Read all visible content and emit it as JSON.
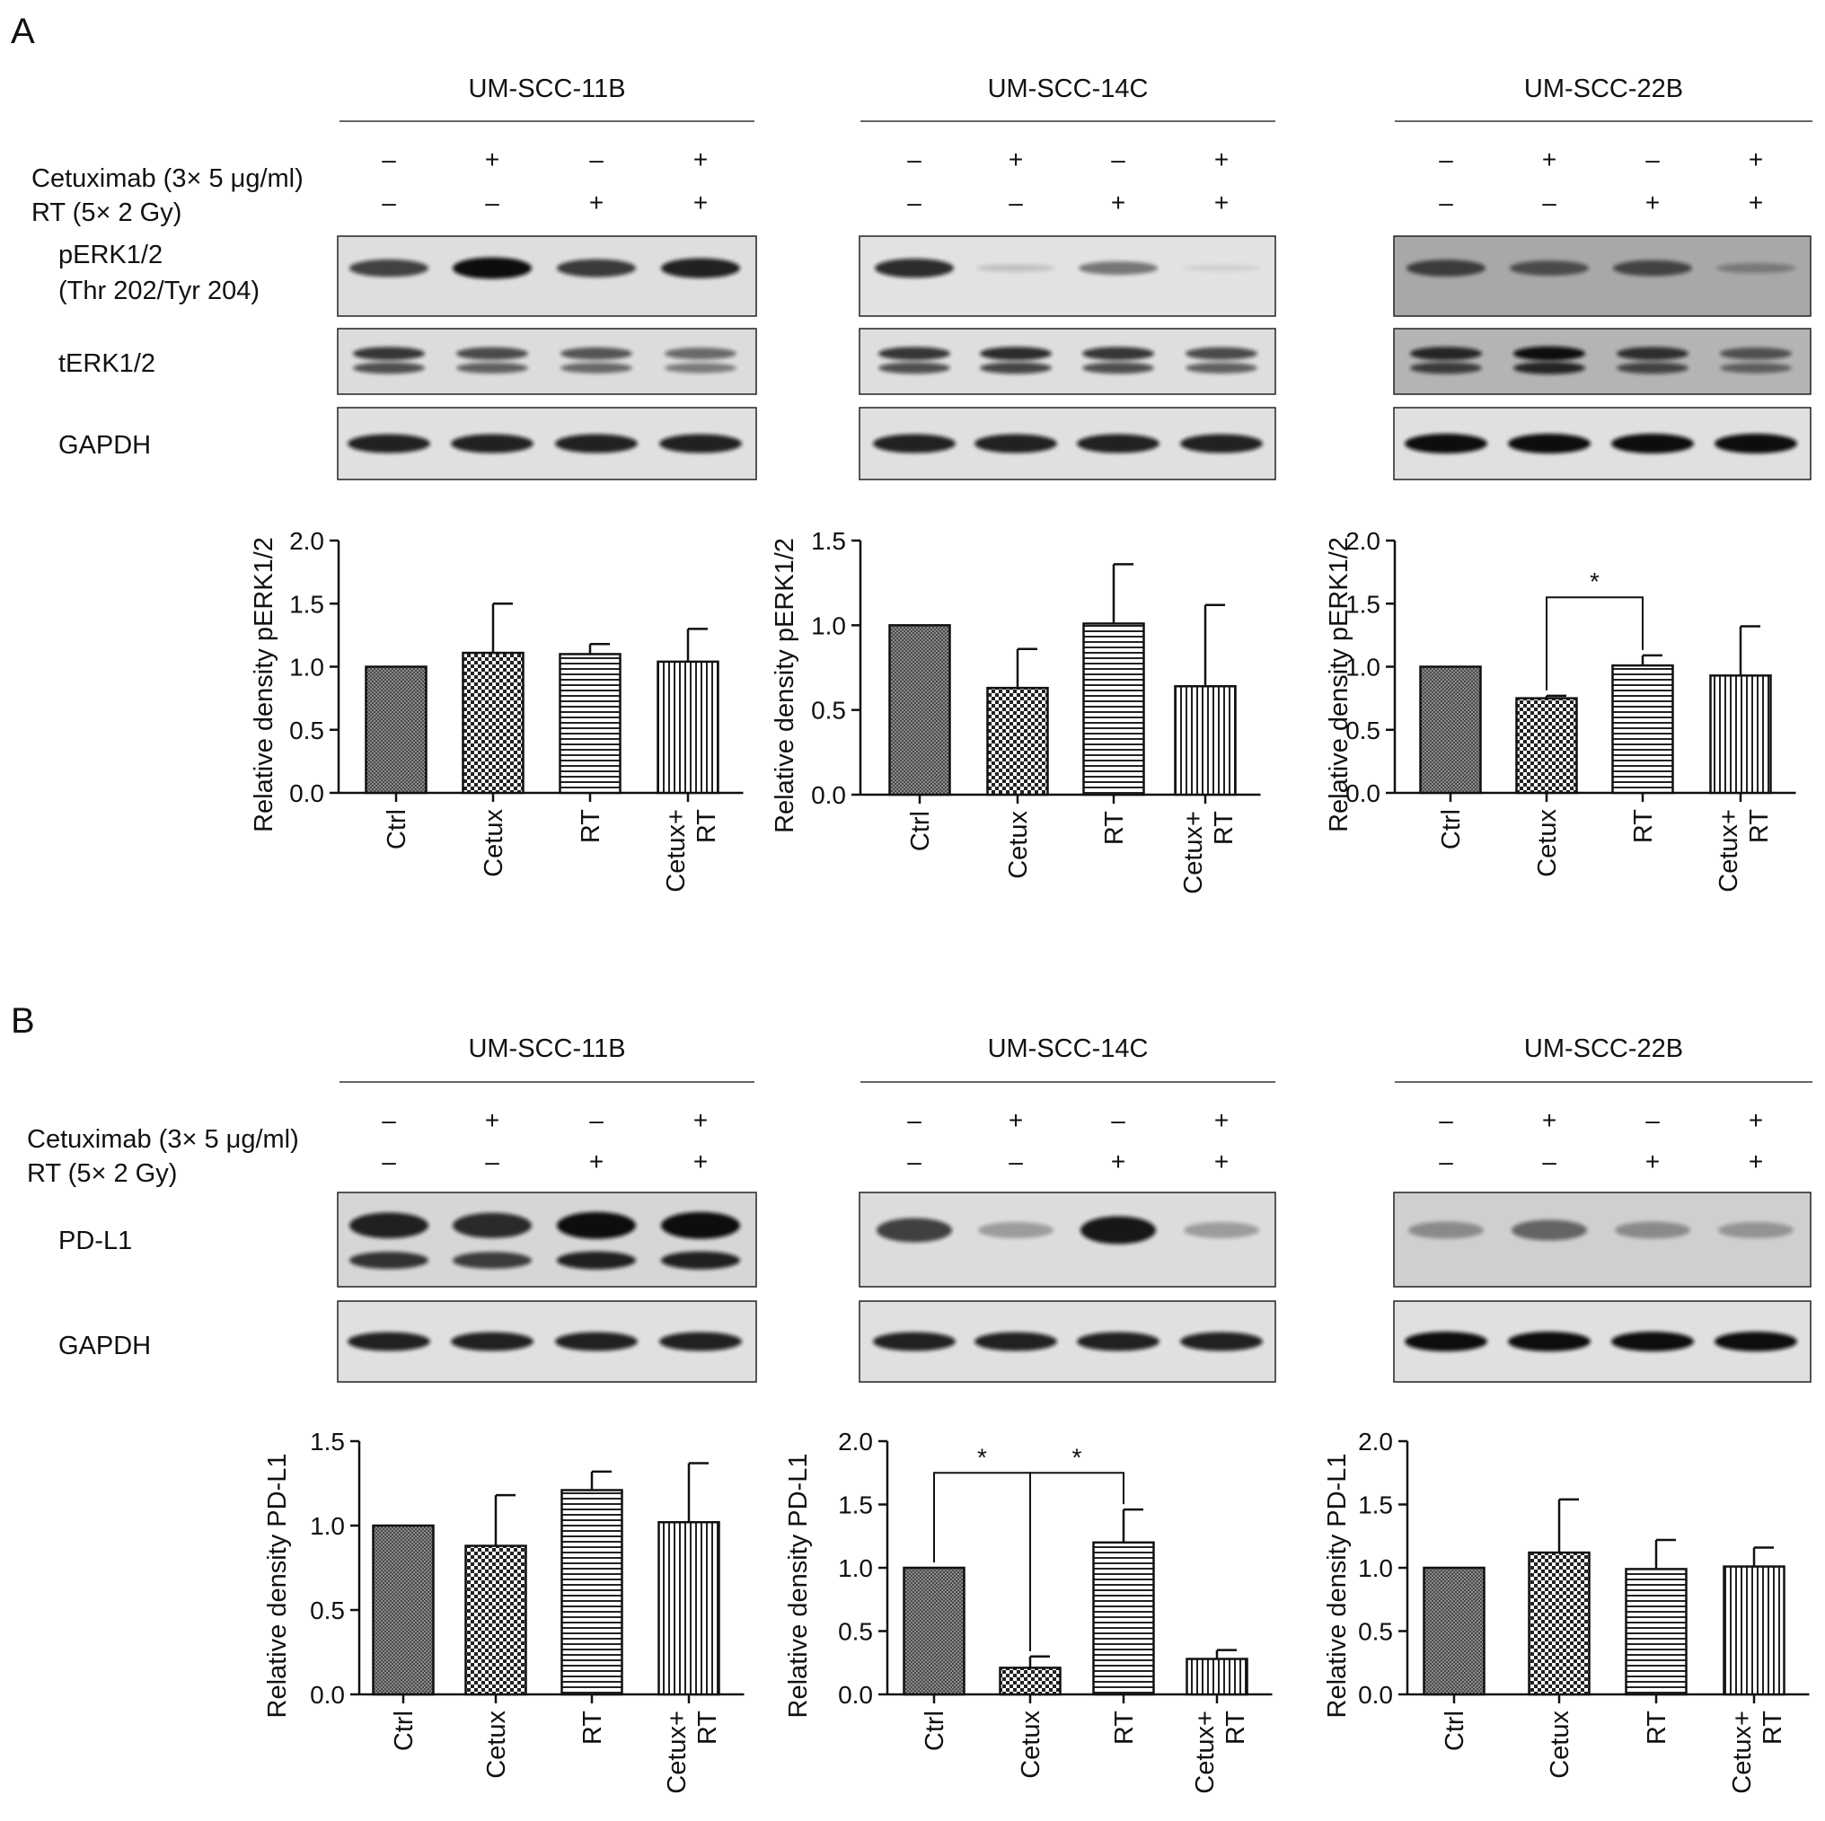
{
  "panel_labels": [
    "A",
    "B"
  ],
  "treatment_rows": {
    "cetuximab_label": "Cetuximab (3× 5 μg/ml)",
    "rt_label": "RT (5× 2 Gy)",
    "cetuximab_signs": [
      "–",
      "+",
      "–",
      "+"
    ],
    "rt_signs": [
      "–",
      "–",
      "+",
      "+"
    ]
  },
  "blot_labels": {
    "perk_line1": "pERK1/2",
    "perk_line2": "(Thr 202/Tyr 204)",
    "terk": "tERK1/2",
    "gapdh": "GAPDH",
    "pdl1": "PD-L1"
  },
  "cell_lines": [
    "UM-SCC-11B",
    "UM-SCC-14C",
    "UM-SCC-22B"
  ],
  "categories": [
    "Ctrl",
    "Cetux",
    "RT",
    "Cetux+\nRT"
  ],
  "fills": [
    "dots",
    "checker",
    "hlines",
    "vlines"
  ],
  "blot_bands": {
    "A": [
      {
        "perk": [
          0.75,
          1.0,
          0.78,
          0.9
        ],
        "terk": [
          0.8,
          0.7,
          0.65,
          0.55
        ],
        "terk_bg": "#dcdcdc",
        "perk_bg": "#dedede",
        "gapdh": [
          0.9,
          0.9,
          0.9,
          0.9
        ]
      },
      {
        "perk": [
          0.85,
          0.15,
          0.5,
          0.08
        ],
        "terk": [
          0.8,
          0.85,
          0.8,
          0.7
        ],
        "terk_bg": "#dedede",
        "perk_bg": "#e2e2e2",
        "gapdh": [
          0.9,
          0.9,
          0.9,
          0.9
        ]
      },
      {
        "perk": [
          0.7,
          0.6,
          0.65,
          0.3
        ],
        "terk": [
          0.85,
          1.0,
          0.8,
          0.6
        ],
        "terk_bg": "#b4b4b4",
        "perk_bg": "#a8a8a8",
        "gapdh": [
          1.0,
          1.0,
          1.0,
          1.0
        ]
      }
    ],
    "B": [
      {
        "pdl1": [
          0.9,
          0.85,
          1.0,
          1.0
        ],
        "pdl1_double": true,
        "pdl1_bg": "#d6d6d6",
        "gapdh": [
          0.9,
          0.9,
          0.9,
          0.9
        ]
      },
      {
        "pdl1": [
          0.75,
          0.3,
          0.95,
          0.3
        ],
        "pdl1_double": false,
        "pdl1_bg": "#dcdcdc",
        "gapdh": [
          0.9,
          0.9,
          0.9,
          0.9
        ]
      },
      {
        "pdl1": [
          0.35,
          0.55,
          0.35,
          0.3
        ],
        "pdl1_double": false,
        "pdl1_bg": "#cfcfcf",
        "gapdh": [
          1.0,
          1.0,
          1.0,
          1.0
        ]
      }
    ]
  },
  "chart_data": [
    {
      "type": "bar",
      "panel": "A",
      "title": "UM-SCC-11B",
      "categories": [
        "Ctrl",
        "Cetux",
        "RT",
        "Cetux+ RT"
      ],
      "values": [
        1.0,
        1.11,
        1.1,
        1.04
      ],
      "errors": [
        0,
        0.39,
        0.08,
        0.26
      ],
      "ylabel": "Relative density pERK1/2",
      "ylim": [
        0,
        2.0
      ],
      "yticks": [
        "0.0",
        "0.5",
        "1.0",
        "1.5",
        "2.0"
      ],
      "significance": []
    },
    {
      "type": "bar",
      "panel": "A",
      "title": "UM-SCC-14C",
      "categories": [
        "Ctrl",
        "Cetux",
        "RT",
        "Cetux+ RT"
      ],
      "values": [
        1.0,
        0.63,
        1.01,
        0.64
      ],
      "errors": [
        0,
        0.23,
        0.35,
        0.48
      ],
      "ylabel": "Relative density pERK1/2",
      "ylim": [
        0,
        1.5
      ],
      "yticks": [
        "0.0",
        "0.5",
        "1.0",
        "1.5"
      ],
      "significance": []
    },
    {
      "type": "bar",
      "panel": "A",
      "title": "UM-SCC-22B",
      "categories": [
        "Ctrl",
        "Cetux",
        "RT",
        "Cetux+ RT"
      ],
      "values": [
        1.0,
        0.75,
        1.01,
        0.93
      ],
      "errors": [
        0,
        0.02,
        0.08,
        0.39
      ],
      "ylabel": "Relative density pERK1/2",
      "ylim": [
        0,
        2.0
      ],
      "yticks": [
        "0.0",
        "0.5",
        "1.0",
        "1.5",
        "2.0"
      ],
      "significance": [
        {
          "from": 1,
          "to": 2,
          "y": 1.55,
          "label": "*"
        }
      ]
    },
    {
      "type": "bar",
      "panel": "B",
      "title": "UM-SCC-11B",
      "categories": [
        "Ctrl",
        "Cetux",
        "RT",
        "Cetux+ RT"
      ],
      "values": [
        1.0,
        0.88,
        1.21,
        1.02
      ],
      "errors": [
        0,
        0.3,
        0.11,
        0.35
      ],
      "ylabel": "Relative density PD-L1",
      "ylim": [
        0,
        1.5
      ],
      "yticks": [
        "0.0",
        "0.5",
        "1.0",
        "1.5"
      ],
      "significance": []
    },
    {
      "type": "bar",
      "panel": "B",
      "title": "UM-SCC-14C",
      "categories": [
        "Ctrl",
        "Cetux",
        "RT",
        "Cetux+ RT"
      ],
      "values": [
        1.0,
        0.21,
        1.2,
        0.28
      ],
      "errors": [
        0,
        0.09,
        0.26,
        0.07
      ],
      "ylabel": "Relative density PD-L1",
      "ylim": [
        0,
        2.0
      ],
      "yticks": [
        "0.0",
        "0.5",
        "1.0",
        "1.5",
        "2.0"
      ],
      "significance": [
        {
          "from": 0,
          "to": 1,
          "y": 1.75,
          "label": "*"
        },
        {
          "from": 1,
          "to": 2,
          "y": 1.75,
          "label": "*"
        }
      ]
    },
    {
      "type": "bar",
      "panel": "B",
      "title": "UM-SCC-22B",
      "categories": [
        "Ctrl",
        "Cetux",
        "RT",
        "Cetux+ RT"
      ],
      "values": [
        1.0,
        1.12,
        0.99,
        1.01
      ],
      "errors": [
        0,
        0.42,
        0.23,
        0.15
      ],
      "ylabel": "Relative density PD-L1",
      "ylim": [
        0,
        2.0
      ],
      "yticks": [
        "0.0",
        "0.5",
        "1.0",
        "1.5",
        "2.0"
      ],
      "significance": []
    }
  ]
}
